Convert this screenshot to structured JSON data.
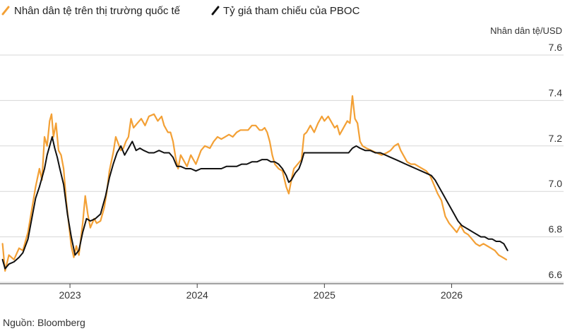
{
  "chart_data": {
    "type": "line",
    "title": "",
    "xlabel": "",
    "ylabel": "Nhân dân tệ/USD",
    "source": "Nguồn: Bloomberg",
    "legend_position": "top-left",
    "grid": "horizontal",
    "xlim": [
      2022.45,
      2026.88
    ],
    "ylim": [
      6.6,
      7.6
    ],
    "x_ticks": [
      {
        "value": 2023,
        "label": "2023"
      },
      {
        "value": 2024,
        "label": "2024"
      },
      {
        "value": 2025,
        "label": "2025"
      },
      {
        "value": 2026,
        "label": "2026"
      }
    ],
    "y_ticks": [
      {
        "value": 6.6,
        "label": "6.6"
      },
      {
        "value": 6.8,
        "label": "6.8"
      },
      {
        "value": 7.0,
        "label": "7.0"
      },
      {
        "value": 7.2,
        "label": "7.2"
      },
      {
        "value": 7.4,
        "label": "7.4"
      },
      {
        "value": 7.6,
        "label": "7.6"
      }
    ],
    "series": [
      {
        "name": "Nhân dân tệ trên thị trường quốc tế",
        "color": "#f3a035",
        "points": [
          [
            2022.47,
            6.77
          ],
          [
            2022.49,
            6.65
          ],
          [
            2022.52,
            6.72
          ],
          [
            2022.56,
            6.7
          ],
          [
            2022.6,
            6.75
          ],
          [
            2022.63,
            6.74
          ],
          [
            2022.67,
            6.82
          ],
          [
            2022.7,
            6.92
          ],
          [
            2022.73,
            7.02
          ],
          [
            2022.76,
            7.1
          ],
          [
            2022.78,
            7.05
          ],
          [
            2022.8,
            7.24
          ],
          [
            2022.82,
            7.2
          ],
          [
            2022.84,
            7.31
          ],
          [
            2022.855,
            7.34
          ],
          [
            2022.87,
            7.24
          ],
          [
            2022.89,
            7.3
          ],
          [
            2022.91,
            7.18
          ],
          [
            2022.93,
            7.16
          ],
          [
            2022.95,
            7.1
          ],
          [
            2022.97,
            6.96
          ],
          [
            2022.99,
            6.86
          ],
          [
            2023.01,
            6.76
          ],
          [
            2023.03,
            6.71
          ],
          [
            2023.05,
            6.76
          ],
          [
            2023.07,
            6.72
          ],
          [
            2023.1,
            6.86
          ],
          [
            2023.12,
            6.98
          ],
          [
            2023.14,
            6.9
          ],
          [
            2023.16,
            6.84
          ],
          [
            2023.19,
            6.88
          ],
          [
            2023.21,
            6.86
          ],
          [
            2023.24,
            6.87
          ],
          [
            2023.27,
            6.93
          ],
          [
            2023.29,
            7.0
          ],
          [
            2023.31,
            7.09
          ],
          [
            2023.34,
            7.17
          ],
          [
            2023.36,
            7.24
          ],
          [
            2023.38,
            7.21
          ],
          [
            2023.4,
            7.18
          ],
          [
            2023.42,
            7.19
          ],
          [
            2023.44,
            7.22
          ],
          [
            2023.46,
            7.24
          ],
          [
            2023.48,
            7.32
          ],
          [
            2023.5,
            7.28
          ],
          [
            2023.53,
            7.3
          ],
          [
            2023.56,
            7.32
          ],
          [
            2023.59,
            7.29
          ],
          [
            2023.62,
            7.33
          ],
          [
            2023.66,
            7.34
          ],
          [
            2023.69,
            7.31
          ],
          [
            2023.72,
            7.33
          ],
          [
            2023.74,
            7.29
          ],
          [
            2023.77,
            7.26
          ],
          [
            2023.79,
            7.26
          ],
          [
            2023.81,
            7.22
          ],
          [
            2023.83,
            7.15
          ],
          [
            2023.85,
            7.1
          ],
          [
            2023.87,
            7.16
          ],
          [
            2023.89,
            7.14
          ],
          [
            2023.92,
            7.11
          ],
          [
            2023.95,
            7.16
          ],
          [
            2023.99,
            7.12
          ],
          [
            2024.03,
            7.18
          ],
          [
            2024.06,
            7.2
          ],
          [
            2024.1,
            7.19
          ],
          [
            2024.13,
            7.22
          ],
          [
            2024.16,
            7.24
          ],
          [
            2024.19,
            7.23
          ],
          [
            2024.22,
            7.24
          ],
          [
            2024.25,
            7.25
          ],
          [
            2024.28,
            7.24
          ],
          [
            2024.31,
            7.26
          ],
          [
            2024.34,
            7.27
          ],
          [
            2024.37,
            7.27
          ],
          [
            2024.4,
            7.27
          ],
          [
            2024.43,
            7.29
          ],
          [
            2024.46,
            7.29
          ],
          [
            2024.49,
            7.27
          ],
          [
            2024.51,
            7.27
          ],
          [
            2024.53,
            7.28
          ],
          [
            2024.55,
            7.26
          ],
          [
            2024.57,
            7.22
          ],
          [
            2024.59,
            7.16
          ],
          [
            2024.61,
            7.12
          ],
          [
            2024.64,
            7.1
          ],
          [
            2024.67,
            7.09
          ],
          [
            2024.7,
            7.02
          ],
          [
            2024.72,
            6.99
          ],
          [
            2024.74,
            7.05
          ],
          [
            2024.76,
            7.1
          ],
          [
            2024.79,
            7.12
          ],
          [
            2024.82,
            7.14
          ],
          [
            2024.84,
            7.25
          ],
          [
            2024.86,
            7.26
          ],
          [
            2024.89,
            7.29
          ],
          [
            2024.92,
            7.26
          ],
          [
            2024.95,
            7.3
          ],
          [
            2024.98,
            7.33
          ],
          [
            2025.0,
            7.31
          ],
          [
            2025.03,
            7.33
          ],
          [
            2025.05,
            7.31
          ],
          [
            2025.08,
            7.28
          ],
          [
            2025.1,
            7.29
          ],
          [
            2025.12,
            7.25
          ],
          [
            2025.14,
            7.27
          ],
          [
            2025.16,
            7.29
          ],
          [
            2025.18,
            7.31
          ],
          [
            2025.2,
            7.3
          ],
          [
            2025.22,
            7.42
          ],
          [
            2025.24,
            7.32
          ],
          [
            2025.26,
            7.3
          ],
          [
            2025.28,
            7.22
          ],
          [
            2025.3,
            7.2
          ],
          [
            2025.33,
            7.19
          ],
          [
            2025.37,
            7.18
          ],
          [
            2025.41,
            7.17
          ],
          [
            2025.45,
            7.16
          ],
          [
            2025.49,
            7.17
          ],
          [
            2025.52,
            7.18
          ],
          [
            2025.55,
            7.2
          ],
          [
            2025.58,
            7.21
          ],
          [
            2025.6,
            7.18
          ],
          [
            2025.62,
            7.16
          ],
          [
            2025.65,
            7.13
          ],
          [
            2025.68,
            7.12
          ],
          [
            2025.71,
            7.12
          ],
          [
            2025.74,
            7.11
          ],
          [
            2025.77,
            7.1
          ],
          [
            2025.8,
            7.09
          ],
          [
            2025.83,
            7.07
          ],
          [
            2025.86,
            7.03
          ],
          [
            2025.89,
            6.99
          ],
          [
            2025.92,
            6.96
          ],
          [
            2025.95,
            6.89
          ],
          [
            2025.98,
            6.86
          ],
          [
            2026.01,
            6.84
          ],
          [
            2026.04,
            6.82
          ],
          [
            2026.07,
            6.85
          ],
          [
            2026.1,
            6.82
          ],
          [
            2026.13,
            6.81
          ],
          [
            2026.16,
            6.79
          ],
          [
            2026.19,
            6.77
          ],
          [
            2026.22,
            6.76
          ],
          [
            2026.25,
            6.77
          ],
          [
            2026.28,
            6.76
          ],
          [
            2026.31,
            6.75
          ],
          [
            2026.34,
            6.74
          ],
          [
            2026.37,
            6.72
          ],
          [
            2026.4,
            6.71
          ],
          [
            2026.43,
            6.7
          ]
        ]
      },
      {
        "name": "Tỷ giá tham chiếu của PBOC",
        "color": "#111111",
        "points": [
          [
            2022.47,
            6.7
          ],
          [
            2022.49,
            6.66
          ],
          [
            2022.52,
            6.68
          ],
          [
            2022.56,
            6.69
          ],
          [
            2022.6,
            6.71
          ],
          [
            2022.63,
            6.73
          ],
          [
            2022.67,
            6.79
          ],
          [
            2022.7,
            6.88
          ],
          [
            2022.73,
            6.97
          ],
          [
            2022.76,
            7.02
          ],
          [
            2022.78,
            7.06
          ],
          [
            2022.8,
            7.1
          ],
          [
            2022.82,
            7.16
          ],
          [
            2022.84,
            7.2
          ],
          [
            2022.86,
            7.24
          ],
          [
            2022.88,
            7.19
          ],
          [
            2022.9,
            7.15
          ],
          [
            2022.92,
            7.1
          ],
          [
            2022.95,
            7.03
          ],
          [
            2022.98,
            6.9
          ],
          [
            2023.01,
            6.8
          ],
          [
            2023.04,
            6.72
          ],
          [
            2023.07,
            6.74
          ],
          [
            2023.1,
            6.82
          ],
          [
            2023.13,
            6.88
          ],
          [
            2023.16,
            6.87
          ],
          [
            2023.2,
            6.88
          ],
          [
            2023.24,
            6.9
          ],
          [
            2023.28,
            6.98
          ],
          [
            2023.31,
            7.06
          ],
          [
            2023.34,
            7.12
          ],
          [
            2023.37,
            7.17
          ],
          [
            2023.4,
            7.2
          ],
          [
            2023.43,
            7.16
          ],
          [
            2023.46,
            7.19
          ],
          [
            2023.49,
            7.22
          ],
          [
            2023.52,
            7.18
          ],
          [
            2023.55,
            7.19
          ],
          [
            2023.58,
            7.18
          ],
          [
            2023.62,
            7.17
          ],
          [
            2023.66,
            7.17
          ],
          [
            2023.7,
            7.18
          ],
          [
            2023.74,
            7.17
          ],
          [
            2023.78,
            7.17
          ],
          [
            2023.81,
            7.15
          ],
          [
            2023.84,
            7.11
          ],
          [
            2023.87,
            7.11
          ],
          [
            2023.91,
            7.1
          ],
          [
            2023.95,
            7.1
          ],
          [
            2023.99,
            7.09
          ],
          [
            2024.03,
            7.1
          ],
          [
            2024.07,
            7.1
          ],
          [
            2024.11,
            7.1
          ],
          [
            2024.15,
            7.1
          ],
          [
            2024.19,
            7.1
          ],
          [
            2024.23,
            7.11
          ],
          [
            2024.27,
            7.11
          ],
          [
            2024.31,
            7.11
          ],
          [
            2024.35,
            7.12
          ],
          [
            2024.39,
            7.12
          ],
          [
            2024.43,
            7.13
          ],
          [
            2024.47,
            7.13
          ],
          [
            2024.51,
            7.14
          ],
          [
            2024.55,
            7.14
          ],
          [
            2024.58,
            7.13
          ],
          [
            2024.61,
            7.13
          ],
          [
            2024.64,
            7.12
          ],
          [
            2024.67,
            7.1
          ],
          [
            2024.7,
            7.07
          ],
          [
            2024.72,
            7.04
          ],
          [
            2024.74,
            7.05
          ],
          [
            2024.77,
            7.08
          ],
          [
            2024.8,
            7.1
          ],
          [
            2024.82,
            7.13
          ],
          [
            2024.84,
            7.17
          ],
          [
            2024.87,
            7.17
          ],
          [
            2024.91,
            7.17
          ],
          [
            2024.95,
            7.17
          ],
          [
            2024.99,
            7.17
          ],
          [
            2025.03,
            7.17
          ],
          [
            2025.07,
            7.17
          ],
          [
            2025.11,
            7.17
          ],
          [
            2025.15,
            7.17
          ],
          [
            2025.19,
            7.17
          ],
          [
            2025.22,
            7.19
          ],
          [
            2025.25,
            7.2
          ],
          [
            2025.28,
            7.19
          ],
          [
            2025.32,
            7.18
          ],
          [
            2025.36,
            7.18
          ],
          [
            2025.4,
            7.17
          ],
          [
            2025.44,
            7.17
          ],
          [
            2025.48,
            7.16
          ],
          [
            2025.52,
            7.15
          ],
          [
            2025.56,
            7.14
          ],
          [
            2025.6,
            7.13
          ],
          [
            2025.64,
            7.12
          ],
          [
            2025.68,
            7.11
          ],
          [
            2025.72,
            7.1
          ],
          [
            2025.76,
            7.09
          ],
          [
            2025.8,
            7.08
          ],
          [
            2025.84,
            7.07
          ],
          [
            2025.87,
            7.05
          ],
          [
            2025.9,
            7.02
          ],
          [
            2025.93,
            6.99
          ],
          [
            2025.96,
            6.96
          ],
          [
            2025.99,
            6.93
          ],
          [
            2026.02,
            6.9
          ],
          [
            2026.05,
            6.87
          ],
          [
            2026.08,
            6.85
          ],
          [
            2026.11,
            6.84
          ],
          [
            2026.14,
            6.83
          ],
          [
            2026.17,
            6.82
          ],
          [
            2026.2,
            6.81
          ],
          [
            2026.23,
            6.8
          ],
          [
            2026.26,
            6.8
          ],
          [
            2026.29,
            6.79
          ],
          [
            2026.32,
            6.79
          ],
          [
            2026.35,
            6.78
          ],
          [
            2026.38,
            6.78
          ],
          [
            2026.41,
            6.77
          ],
          [
            2026.44,
            6.74
          ]
        ]
      }
    ]
  },
  "colors": {
    "offshore": "#f3a035",
    "pboc": "#111111",
    "grid": "#d7d7d7",
    "axis": "#444444"
  }
}
